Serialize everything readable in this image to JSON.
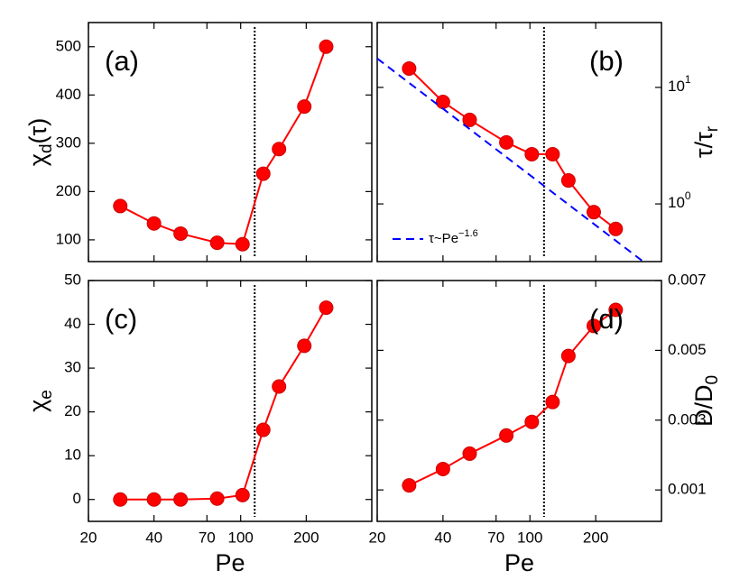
{
  "chart_data": [
    {
      "type": "line",
      "title": "(a)",
      "xlog": true,
      "ylog": false,
      "yaxis_side": "left",
      "x": [
        28,
        40,
        53,
        78,
        102,
        127,
        150,
        196,
        247
      ],
      "series": [
        {
          "color": "#ff0000",
          "values": [
            170,
            134,
            113,
            94,
            91,
            237,
            288,
            376,
            500
          ]
        }
      ],
      "xlim": [
        20,
        400
      ],
      "xticks": [
        20,
        40,
        70,
        100,
        200
      ],
      "ylim": [
        55,
        550
      ],
      "yticks": [
        100,
        200,
        300,
        400,
        500
      ],
      "vline": 116,
      "ylabel": [
        {
          "text": "χ"
        },
        {
          "text": "d",
          "sub": true
        },
        {
          "text": "(τ)"
        }
      ]
    },
    {
      "type": "line",
      "title": "(b)",
      "xlog": true,
      "ylog": true,
      "yaxis_side": "right",
      "x": [
        28,
        40,
        53,
        78,
        102,
        127,
        150,
        196,
        247
      ],
      "series": [
        {
          "color": "#ff0000",
          "values": [
            14.5,
            7.5,
            5.26,
            3.37,
            2.67,
            2.67,
            1.59,
            0.85,
            0.61
          ]
        },
        {
          "name": "τ~Pe",
          "name_sup": "−1.6",
          "color": "#0000ff",
          "dash": true,
          "x": [
            20,
            330
          ],
          "values": [
            17.7,
            0.32
          ]
        }
      ],
      "xlim": [
        20,
        400
      ],
      "xticks": [
        20,
        40,
        70,
        100,
        200
      ],
      "ylim": [
        0.32,
        36
      ],
      "yticks": [
        {
          "value": 1,
          "label": "10",
          "sup": "0"
        },
        {
          "value": 10,
          "label": "10",
          "sup": "1"
        }
      ],
      "legend": "lower left",
      "vline": 116,
      "ylabel": [
        {
          "text": "τ/τ"
        },
        {
          "text": "r",
          "sub": true
        }
      ]
    },
    {
      "type": "line",
      "title": "(c)",
      "xlog": true,
      "ylog": false,
      "yaxis_side": "left",
      "x": [
        28,
        40,
        53,
        78,
        102,
        127,
        150,
        196,
        247
      ],
      "series": [
        {
          "color": "#ff0000",
          "values": [
            0,
            0,
            0,
            0.2,
            1.0,
            15.9,
            25.8,
            35.1,
            43.8
          ]
        }
      ],
      "xlim": [
        20,
        400
      ],
      "xticks": [
        20,
        40,
        70,
        100,
        200
      ],
      "ylim": [
        -5,
        50
      ],
      "yticks": [
        0,
        10,
        20,
        30,
        40,
        50
      ],
      "vline": 116,
      "xlabel": "Pe",
      "ylabel": [
        {
          "text": "χ"
        },
        {
          "text": "e",
          "sub": true
        }
      ]
    },
    {
      "type": "line",
      "title": "(d)",
      "xlog": true,
      "ylog": false,
      "yaxis_side": "right",
      "x": [
        28,
        40,
        53,
        78,
        102,
        127,
        150,
        196,
        247
      ],
      "series": [
        {
          "color": "#ff0000",
          "values": [
            0.00113,
            0.0016,
            0.00204,
            0.00256,
            0.00295,
            0.00352,
            0.00484,
            0.0057,
            0.00616
          ]
        }
      ],
      "xlim": [
        20,
        400
      ],
      "xticks": [
        20,
        40,
        70,
        100,
        200
      ],
      "ylim": [
        0.0001,
        0.007
      ],
      "yticks": [
        0.001,
        0.003,
        0.005,
        0.007
      ],
      "vline": 116,
      "xlabel": "Pe",
      "ylabel": [
        {
          "text": "D/D"
        },
        {
          "text": "0",
          "sub": true
        }
      ]
    }
  ]
}
